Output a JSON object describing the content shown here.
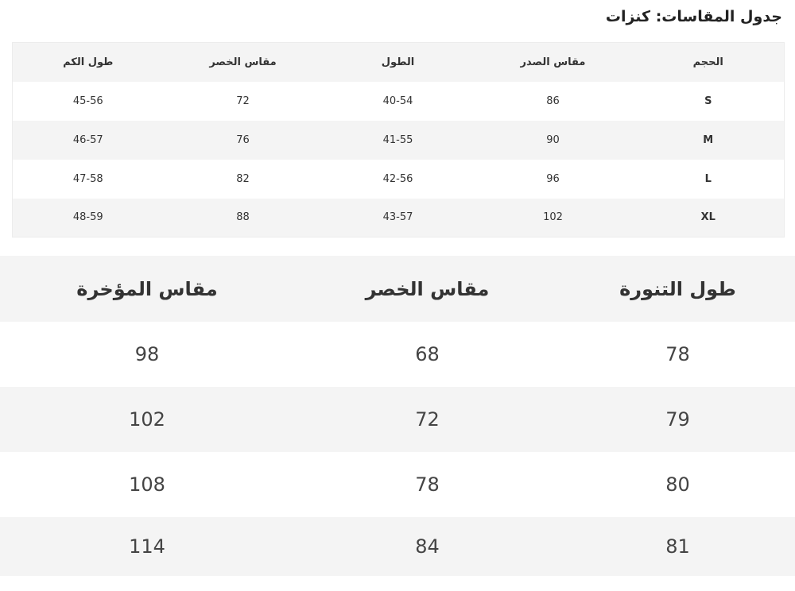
{
  "title": "جدول المقاسات: كنزات",
  "sweater_table": {
    "headers": [
      "طول الكم",
      "مقاس الخصر",
      "الطول",
      "مقاس الصدر",
      "الحجم"
    ],
    "rows": [
      [
        "45-56",
        "72",
        "40-54",
        "86",
        "S"
      ],
      [
        "46-57",
        "76",
        "41-55",
        "90",
        "M"
      ],
      [
        "47-58",
        "82",
        "42-56",
        "96",
        "L"
      ],
      [
        "48-59",
        "88",
        "43-57",
        "102",
        "XL"
      ]
    ]
  },
  "skirt_table": {
    "headers": [
      "مقاس المؤخرة",
      "مقاس الخصر",
      "طول التنورة"
    ],
    "rows": [
      [
        "98",
        "68",
        "78"
      ],
      [
        "102",
        "72",
        "79"
      ],
      [
        "108",
        "78",
        "80"
      ],
      [
        "114",
        "84",
        "81"
      ]
    ]
  }
}
